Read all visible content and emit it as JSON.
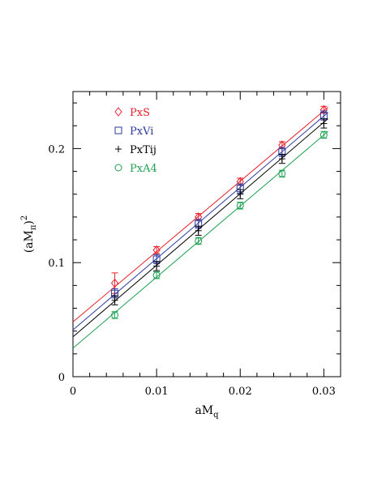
{
  "chart_data": {
    "type": "scatter",
    "xlabel": {
      "base": "aM",
      "sub": "q"
    },
    "ylabel": {
      "pre": "(aM",
      "sub": "π",
      "post": ")",
      "sup": "2"
    },
    "xlim": [
      0,
      0.032
    ],
    "ylim": [
      0,
      0.25
    ],
    "xticks": [
      {
        "value": 0,
        "label": "0"
      },
      {
        "value": 0.01,
        "label": "0.01"
      },
      {
        "value": 0.02,
        "label": "0.02"
      },
      {
        "value": 0.03,
        "label": "0.03"
      }
    ],
    "yticks": [
      {
        "value": 0,
        "label": "0"
      },
      {
        "value": 0.1,
        "label": "0.1"
      },
      {
        "value": 0.2,
        "label": "0.2"
      }
    ],
    "legend_position": "top-left",
    "series": [
      {
        "name": "PxS",
        "color": "#e8202a",
        "marker": "diamond",
        "points": [
          {
            "x": 0.005,
            "y": 0.082,
            "err": 0.009
          },
          {
            "x": 0.01,
            "y": 0.111,
            "err": 0.003
          },
          {
            "x": 0.015,
            "y": 0.14,
            "err": 0.003
          },
          {
            "x": 0.02,
            "y": 0.171,
            "err": 0.003
          },
          {
            "x": 0.025,
            "y": 0.203,
            "err": 0.003
          },
          {
            "x": 0.03,
            "y": 0.234,
            "err": 0.003
          }
        ],
        "fit": {
          "intercept": 0.048,
          "slope": 6.17
        }
      },
      {
        "name": "PxVi",
        "color": "#2b3aa0",
        "marker": "square",
        "points": [
          {
            "x": 0.005,
            "y": 0.073,
            "err": 0.004
          },
          {
            "x": 0.01,
            "y": 0.103,
            "err": 0.004
          },
          {
            "x": 0.015,
            "y": 0.134,
            "err": 0.004
          },
          {
            "x": 0.02,
            "y": 0.165,
            "err": 0.004
          },
          {
            "x": 0.025,
            "y": 0.197,
            "err": 0.004
          },
          {
            "x": 0.03,
            "y": 0.229,
            "err": 0.004
          }
        ],
        "fit": {
          "intercept": 0.041,
          "slope": 6.25
        }
      },
      {
        "name": "PxTij",
        "color": "#000000",
        "marker": "plus",
        "points": [
          {
            "x": 0.005,
            "y": 0.067,
            "err": 0.004
          },
          {
            "x": 0.01,
            "y": 0.097,
            "err": 0.004
          },
          {
            "x": 0.015,
            "y": 0.128,
            "err": 0.004
          },
          {
            "x": 0.02,
            "y": 0.16,
            "err": 0.004
          },
          {
            "x": 0.025,
            "y": 0.191,
            "err": 0.004
          },
          {
            "x": 0.03,
            "y": 0.222,
            "err": 0.004
          }
        ],
        "fit": {
          "intercept": 0.035,
          "slope": 6.27
        }
      },
      {
        "name": "PxA4",
        "color": "#1ea050",
        "marker": "circle",
        "points": [
          {
            "x": 0.005,
            "y": 0.054,
            "err": 0.003
          },
          {
            "x": 0.01,
            "y": 0.089,
            "err": 0.003
          },
          {
            "x": 0.015,
            "y": 0.119,
            "err": 0.003
          },
          {
            "x": 0.02,
            "y": 0.15,
            "err": 0.003
          },
          {
            "x": 0.025,
            "y": 0.178,
            "err": 0.003
          },
          {
            "x": 0.03,
            "y": 0.212,
            "err": 0.003
          }
        ],
        "fit": {
          "intercept": 0.025,
          "slope": 6.23
        }
      }
    ]
  }
}
